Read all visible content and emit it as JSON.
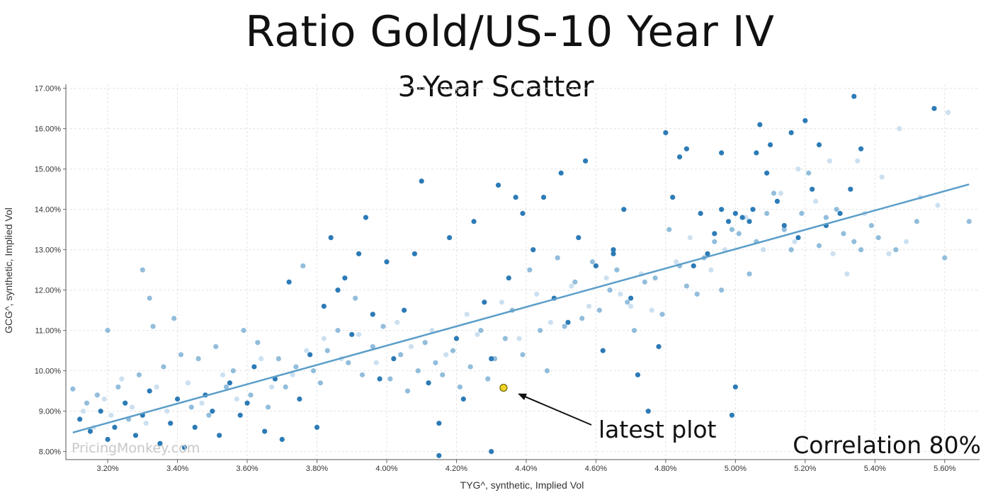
{
  "chart_data": {
    "type": "scatter",
    "title": "Ratio Gold/US-10 Year IV",
    "subtitle": "3-Year Scatter",
    "xlabel": "TYG^, synthetic, Implied Vol",
    "ylabel": "GCG^, synthetic, Implied Vol",
    "xlim": [
      3.08,
      5.7
    ],
    "ylim": [
      7.8,
      17.1
    ],
    "x_ticks": [
      "3.20%",
      "3.40%",
      "3.60%",
      "3.80%",
      "4.00%",
      "4.20%",
      "4.40%",
      "4.60%",
      "4.80%",
      "5.00%",
      "5.20%",
      "5.40%",
      "5.60%"
    ],
    "y_ticks": [
      "8.00%",
      "9.00%",
      "10.00%",
      "11.00%",
      "12.00%",
      "13.00%",
      "14.00%",
      "15.00%",
      "16.00%",
      "17.00%"
    ],
    "grid": true,
    "trendline": {
      "x": [
        3.1,
        5.67
      ],
      "y": [
        8.47,
        14.62
      ]
    },
    "latest_point": {
      "x": 4.335,
      "y": 9.58
    },
    "annotation": "latest plot",
    "correlation_label": "Correlation 80%",
    "watermark": "PricingMonkey.com",
    "colors": {
      "dark": "#2c7bb6",
      "mid": "#7fb1d6",
      "light": "#c3dbed",
      "trend": "#5b9ec9",
      "latest": "#f3d22a",
      "latest_border": "#666600"
    },
    "series": [
      {
        "shade": "dark",
        "points": [
          [
            3.12,
            8.8
          ],
          [
            3.15,
            8.5
          ],
          [
            3.18,
            9.0
          ],
          [
            3.2,
            8.3
          ],
          [
            3.22,
            8.6
          ],
          [
            3.25,
            9.2
          ],
          [
            3.28,
            8.4
          ],
          [
            3.3,
            8.9
          ],
          [
            3.32,
            9.5
          ],
          [
            3.35,
            8.2
          ],
          [
            3.38,
            8.7
          ],
          [
            3.4,
            9.3
          ],
          [
            3.42,
            8.1
          ],
          [
            3.45,
            8.6
          ],
          [
            3.48,
            9.4
          ],
          [
            3.5,
            9.0
          ],
          [
            3.52,
            8.4
          ],
          [
            3.55,
            9.7
          ],
          [
            3.58,
            8.9
          ],
          [
            3.6,
            9.2
          ],
          [
            3.62,
            10.1
          ],
          [
            3.65,
            8.5
          ],
          [
            3.68,
            9.8
          ],
          [
            3.7,
            8.3
          ],
          [
            3.72,
            12.2
          ],
          [
            3.75,
            9.3
          ],
          [
            3.78,
            10.4
          ],
          [
            3.8,
            8.6
          ],
          [
            3.82,
            11.6
          ],
          [
            3.84,
            13.3
          ],
          [
            3.86,
            12.0
          ],
          [
            3.88,
            12.3
          ],
          [
            3.9,
            10.9
          ],
          [
            3.92,
            12.9
          ],
          [
            3.94,
            13.8
          ],
          [
            3.96,
            11.4
          ],
          [
            3.98,
            9.8
          ],
          [
            4.0,
            12.7
          ],
          [
            4.02,
            10.3
          ],
          [
            4.05,
            11.5
          ],
          [
            4.08,
            12.9
          ],
          [
            4.1,
            14.7
          ],
          [
            4.12,
            9.7
          ],
          [
            4.15,
            8.7
          ],
          [
            4.18,
            13.3
          ],
          [
            4.2,
            10.8
          ],
          [
            4.22,
            9.3
          ],
          [
            4.25,
            13.7
          ],
          [
            4.28,
            11.7
          ],
          [
            4.3,
            10.3
          ],
          [
            4.32,
            14.6
          ],
          [
            4.35,
            12.3
          ],
          [
            4.37,
            14.3
          ],
          [
            4.39,
            13.9
          ],
          [
            4.42,
            13.0
          ],
          [
            4.45,
            14.3
          ],
          [
            4.48,
            11.8
          ],
          [
            4.5,
            14.9
          ],
          [
            4.52,
            11.2
          ],
          [
            4.55,
            13.3
          ],
          [
            4.57,
            15.2
          ],
          [
            4.6,
            12.6
          ],
          [
            4.62,
            10.5
          ],
          [
            4.65,
            12.9
          ],
          [
            4.68,
            14.0
          ],
          [
            4.7,
            11.8
          ],
          [
            4.72,
            9.9
          ],
          [
            4.75,
            9.0
          ],
          [
            4.78,
            10.6
          ],
          [
            4.8,
            15.9
          ],
          [
            4.82,
            14.3
          ],
          [
            4.84,
            15.3
          ],
          [
            4.86,
            15.5
          ],
          [
            4.88,
            12.6
          ],
          [
            4.9,
            13.9
          ],
          [
            4.92,
            12.9
          ],
          [
            4.94,
            13.4
          ],
          [
            4.96,
            15.4
          ],
          [
            4.98,
            13.7
          ],
          [
            5.0,
            13.9
          ],
          [
            5.02,
            13.8
          ],
          [
            5.04,
            13.7
          ],
          [
            5.06,
            15.4
          ],
          [
            5.07,
            16.1
          ],
          [
            5.09,
            14.9
          ],
          [
            5.1,
            15.6
          ],
          [
            5.12,
            14.2
          ],
          [
            5.14,
            13.6
          ],
          [
            5.16,
            15.9
          ],
          [
            5.18,
            13.3
          ],
          [
            5.2,
            16.2
          ],
          [
            5.22,
            14.5
          ],
          [
            5.24,
            15.6
          ],
          [
            5.26,
            13.6
          ],
          [
            5.3,
            13.9
          ],
          [
            5.33,
            14.5
          ],
          [
            5.34,
            16.8
          ],
          [
            5.36,
            15.5
          ],
          [
            5.57,
            16.5
          ],
          [
            5.0,
            9.6
          ],
          [
            4.99,
            8.9
          ],
          [
            4.3,
            8.0
          ],
          [
            4.15,
            7.9
          ],
          [
            4.65,
            13.0
          ],
          [
            4.96,
            14.0
          ],
          [
            5.05,
            14.0
          ]
        ]
      },
      {
        "shade": "mid",
        "points": [
          [
            3.1,
            9.55
          ],
          [
            3.14,
            9.2
          ],
          [
            3.17,
            9.4
          ],
          [
            3.2,
            11.0
          ],
          [
            3.23,
            9.6
          ],
          [
            3.26,
            8.8
          ],
          [
            3.29,
            9.9
          ],
          [
            3.3,
            12.5
          ],
          [
            3.32,
            11.8
          ],
          [
            3.33,
            11.1
          ],
          [
            3.36,
            10.1
          ],
          [
            3.39,
            11.3
          ],
          [
            3.41,
            10.4
          ],
          [
            3.44,
            9.1
          ],
          [
            3.46,
            10.3
          ],
          [
            3.49,
            8.9
          ],
          [
            3.51,
            10.6
          ],
          [
            3.54,
            9.6
          ],
          [
            3.56,
            10.0
          ],
          [
            3.59,
            11.0
          ],
          [
            3.61,
            9.4
          ],
          [
            3.63,
            10.7
          ],
          [
            3.66,
            9.1
          ],
          [
            3.69,
            10.3
          ],
          [
            3.71,
            9.6
          ],
          [
            3.74,
            10.1
          ],
          [
            3.76,
            12.6
          ],
          [
            3.79,
            10.0
          ],
          [
            3.81,
            9.7
          ],
          [
            3.83,
            10.5
          ],
          [
            3.86,
            11.0
          ],
          [
            3.89,
            10.2
          ],
          [
            3.91,
            11.8
          ],
          [
            3.93,
            9.9
          ],
          [
            3.96,
            10.6
          ],
          [
            3.99,
            11.1
          ],
          [
            4.01,
            9.8
          ],
          [
            4.04,
            10.4
          ],
          [
            4.06,
            9.5
          ],
          [
            4.09,
            10.0
          ],
          [
            4.11,
            10.7
          ],
          [
            4.14,
            10.2
          ],
          [
            4.16,
            9.9
          ],
          [
            4.19,
            10.5
          ],
          [
            4.21,
            9.6
          ],
          [
            4.24,
            10.1
          ],
          [
            4.27,
            11.0
          ],
          [
            4.29,
            9.8
          ],
          [
            4.31,
            10.3
          ],
          [
            4.34,
            10.8
          ],
          [
            4.36,
            11.5
          ],
          [
            4.39,
            10.4
          ],
          [
            4.41,
            12.5
          ],
          [
            4.44,
            11.0
          ],
          [
            4.46,
            10.0
          ],
          [
            4.49,
            12.8
          ],
          [
            4.51,
            11.1
          ],
          [
            4.54,
            12.2
          ],
          [
            4.56,
            11.3
          ],
          [
            4.59,
            12.7
          ],
          [
            4.61,
            11.5
          ],
          [
            4.64,
            12.0
          ],
          [
            4.66,
            12.5
          ],
          [
            4.69,
            11.7
          ],
          [
            4.71,
            11.0
          ],
          [
            4.74,
            12.2
          ],
          [
            4.77,
            12.3
          ],
          [
            4.79,
            11.4
          ],
          [
            4.81,
            13.5
          ],
          [
            4.84,
            12.6
          ],
          [
            4.86,
            12.1
          ],
          [
            4.89,
            11.9
          ],
          [
            4.91,
            12.8
          ],
          [
            4.94,
            13.2
          ],
          [
            4.96,
            12.0
          ],
          [
            4.99,
            13.5
          ],
          [
            5.01,
            13.4
          ],
          [
            5.04,
            12.4
          ],
          [
            5.06,
            13.2
          ],
          [
            5.09,
            13.9
          ],
          [
            5.11,
            14.4
          ],
          [
            5.14,
            13.5
          ],
          [
            5.16,
            13.0
          ],
          [
            5.19,
            13.9
          ],
          [
            5.21,
            14.9
          ],
          [
            5.24,
            13.1
          ],
          [
            5.26,
            13.8
          ],
          [
            5.29,
            14.0
          ],
          [
            5.31,
            13.4
          ],
          [
            5.34,
            13.2
          ],
          [
            5.36,
            13.0
          ],
          [
            5.39,
            13.6
          ],
          [
            5.41,
            13.3
          ],
          [
            5.46,
            13.0
          ],
          [
            5.52,
            13.7
          ],
          [
            5.67,
            13.7
          ],
          [
            5.6,
            12.8
          ]
        ]
      },
      {
        "shade": "light",
        "points": [
          [
            3.13,
            9.0
          ],
          [
            3.16,
            8.6
          ],
          [
            3.19,
            9.3
          ],
          [
            3.21,
            8.9
          ],
          [
            3.24,
            9.8
          ],
          [
            3.27,
            9.1
          ],
          [
            3.31,
            8.7
          ],
          [
            3.34,
            9.6
          ],
          [
            3.37,
            9.0
          ],
          [
            3.43,
            9.7
          ],
          [
            3.47,
            9.2
          ],
          [
            3.53,
            9.9
          ],
          [
            3.57,
            9.3
          ],
          [
            3.64,
            10.3
          ],
          [
            3.67,
            9.6
          ],
          [
            3.73,
            9.9
          ],
          [
            3.77,
            10.5
          ],
          [
            3.82,
            10.8
          ],
          [
            3.87,
            10.3
          ],
          [
            3.92,
            10.9
          ],
          [
            3.97,
            10.2
          ],
          [
            4.03,
            11.2
          ],
          [
            4.07,
            10.6
          ],
          [
            4.13,
            11.0
          ],
          [
            4.17,
            10.4
          ],
          [
            4.23,
            11.4
          ],
          [
            4.26,
            10.9
          ],
          [
            4.33,
            11.7
          ],
          [
            4.38,
            10.8
          ],
          [
            4.43,
            11.9
          ],
          [
            4.47,
            11.2
          ],
          [
            4.53,
            12.1
          ],
          [
            4.58,
            11.6
          ],
          [
            4.63,
            12.3
          ],
          [
            4.67,
            11.9
          ],
          [
            4.73,
            12.4
          ],
          [
            4.76,
            11.5
          ],
          [
            4.83,
            12.7
          ],
          [
            4.87,
            13.3
          ],
          [
            4.93,
            12.5
          ],
          [
            4.97,
            13.0
          ],
          [
            5.03,
            13.8
          ],
          [
            5.08,
            13.0
          ],
          [
            5.13,
            14.4
          ],
          [
            5.17,
            13.2
          ],
          [
            5.23,
            14.2
          ],
          [
            5.27,
            15.2
          ],
          [
            5.32,
            12.4
          ],
          [
            5.37,
            13.9
          ],
          [
            5.42,
            14.8
          ],
          [
            5.47,
            16.0
          ],
          [
            5.53,
            14.3
          ],
          [
            5.58,
            14.1
          ],
          [
            5.61,
            16.4
          ],
          [
            5.44,
            12.9
          ],
          [
            5.28,
            12.9
          ],
          [
            5.49,
            13.2
          ],
          [
            5.18,
            15.0
          ],
          [
            5.35,
            15.2
          ],
          [
            4.7,
            11.6
          ]
        ]
      }
    ]
  }
}
